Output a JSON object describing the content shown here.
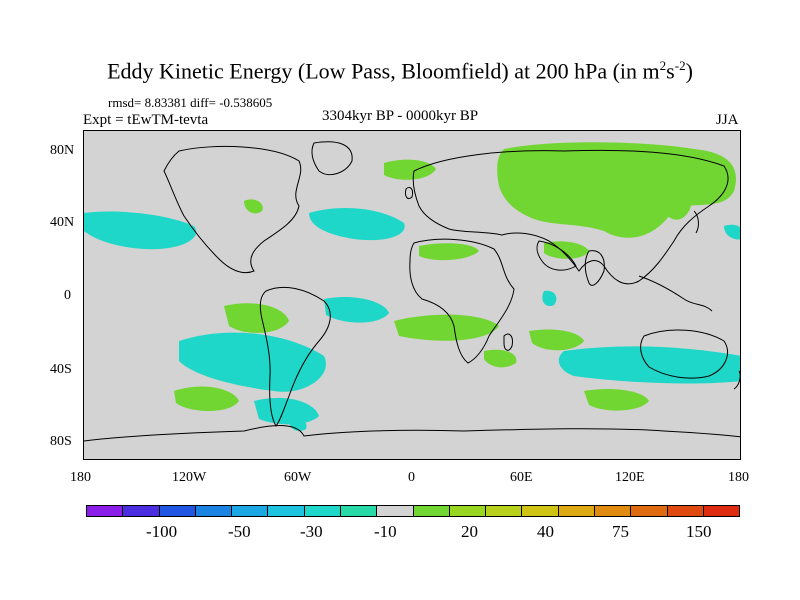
{
  "title": {
    "main": "Eddy Kinetic Energy (Low Pass, Bloomfield) at 200 hPa (in m",
    "sup1": "2",
    "mid": "s",
    "sup2": "-2",
    "end": ")"
  },
  "stats": "rmsd= 8.83381  diff= -0.538605",
  "expt": "Expt = tEwTM-tevta",
  "period": "3304kyr BP - 0000kyr BP",
  "season": "JJA",
  "lat_ticks": [
    "80N",
    "40N",
    "0",
    "40S",
    "80S"
  ],
  "lon_ticks": [
    "180",
    "120W",
    "60W",
    "0",
    "60E",
    "120E",
    "180"
  ],
  "colors": {
    "land_background": "#d3d3d3",
    "green_light": "#72d632",
    "green_mid": "#98d622",
    "cyan": "#1ed7c8",
    "cyan_light": "#27d9d0"
  },
  "colorbar": {
    "colors": [
      "#8b1ee8",
      "#4a2ee0",
      "#2156e3",
      "#1b84e3",
      "#1ba7e3",
      "#1ec4df",
      "#1ed7c8",
      "#27d9a6",
      "#d3d3d3",
      "#72d632",
      "#98d622",
      "#b7d11c",
      "#cfc414",
      "#dca912",
      "#e08a10",
      "#e06a10",
      "#df4a10",
      "#de2c10"
    ],
    "labels": [
      "-100",
      "-50",
      "-30",
      "-10",
      "20",
      "40",
      "75",
      "150"
    ]
  }
}
